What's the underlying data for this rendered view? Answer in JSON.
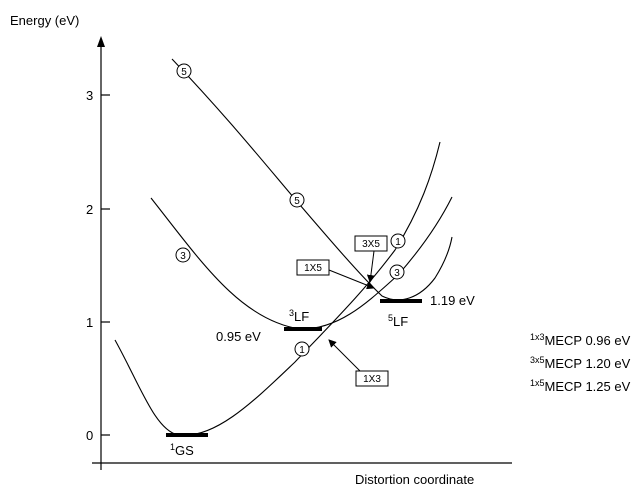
{
  "axes": {
    "y_label": "Energy (eV)",
    "x_label": "Distortion coordinate",
    "y_ticks": [
      "0",
      "1",
      "2",
      "3"
    ]
  },
  "states": [
    {
      "sup": "1",
      "name": "GS",
      "energy_label": ""
    },
    {
      "sup": "3",
      "name": "LF",
      "energy_label": "0.95 eV"
    },
    {
      "sup": "5",
      "name": "LF",
      "energy_label": "1.19 eV"
    }
  ],
  "curve_markers": [
    "1",
    "3",
    "5"
  ],
  "crossing_boxes": [
    "1X3",
    "1X5",
    "3X5"
  ],
  "mecp_list": [
    {
      "sup": "1x3",
      "text": "MECP 0.96 eV"
    },
    {
      "sup": "3x5",
      "text": "MECP 1.20 eV"
    },
    {
      "sup": "1x5",
      "text": "MECP 1.25 eV"
    }
  ]
}
